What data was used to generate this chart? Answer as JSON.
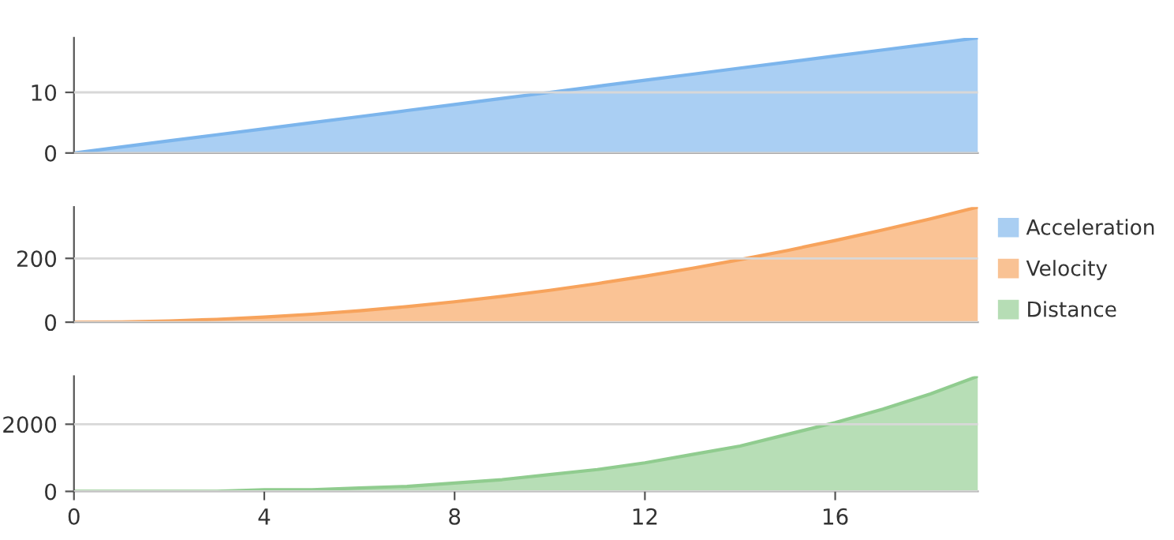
{
  "chart_data": [
    {
      "type": "area",
      "x": [
        0,
        1,
        2,
        3,
        4,
        5,
        6,
        7,
        8,
        9,
        10,
        11,
        12,
        13,
        14,
        15,
        16,
        17,
        18,
        19
      ],
      "xlim": [
        0,
        19
      ],
      "xticks": [
        0,
        4,
        8,
        12,
        16
      ],
      "ylim": [
        0,
        19
      ],
      "yticks": [
        0,
        10
      ],
      "grid": "y",
      "legend": "right",
      "tick_labels": "y",
      "series": [
        {
          "name": "Acceleration",
          "color": "#7cb5ec",
          "values": [
            0,
            1,
            2,
            3,
            4,
            5,
            6,
            7,
            8,
            9,
            10,
            11,
            12,
            13,
            14,
            15,
            16,
            17,
            18,
            19
          ]
        }
      ]
    },
    {
      "type": "area",
      "x": [
        0,
        1,
        2,
        3,
        4,
        5,
        6,
        7,
        8,
        9,
        10,
        11,
        12,
        13,
        14,
        15,
        16,
        17,
        18,
        19
      ],
      "xlim": [
        0,
        19
      ],
      "xticks": [
        0,
        4,
        8,
        12,
        16
      ],
      "ylim": [
        0,
        361
      ],
      "yticks": [
        0,
        200
      ],
      "grid": "y",
      "legend": "right",
      "tick_labels": "y",
      "series": [
        {
          "name": "Velocity",
          "color": "#f7a35c",
          "values": [
            0,
            1,
            4,
            9,
            16,
            25,
            36,
            49,
            64,
            81,
            100,
            121,
            144,
            169,
            196,
            225,
            256,
            289,
            324,
            361
          ]
        }
      ]
    },
    {
      "type": "area",
      "x": [
        0,
        1,
        2,
        3,
        4,
        5,
        6,
        7,
        8,
        9,
        10,
        11,
        12,
        13,
        14,
        15,
        16,
        17,
        18,
        19
      ],
      "xlim": [
        0,
        19
      ],
      "xticks": [
        0,
        4,
        8,
        12,
        16
      ],
      "ylim": [
        0,
        3430
      ],
      "yticks": [
        0,
        2000
      ],
      "grid": "y",
      "legend": "right",
      "series": [
        {
          "name": "Distance",
          "color": "#90cc8f",
          "values": [
            0,
            0,
            0,
            0,
            50,
            50,
            100,
            150,
            250,
            350,
            500,
            650,
            850,
            1100,
            1350,
            1700,
            2050,
            2450,
            2900,
            3430
          ]
        }
      ]
    }
  ]
}
